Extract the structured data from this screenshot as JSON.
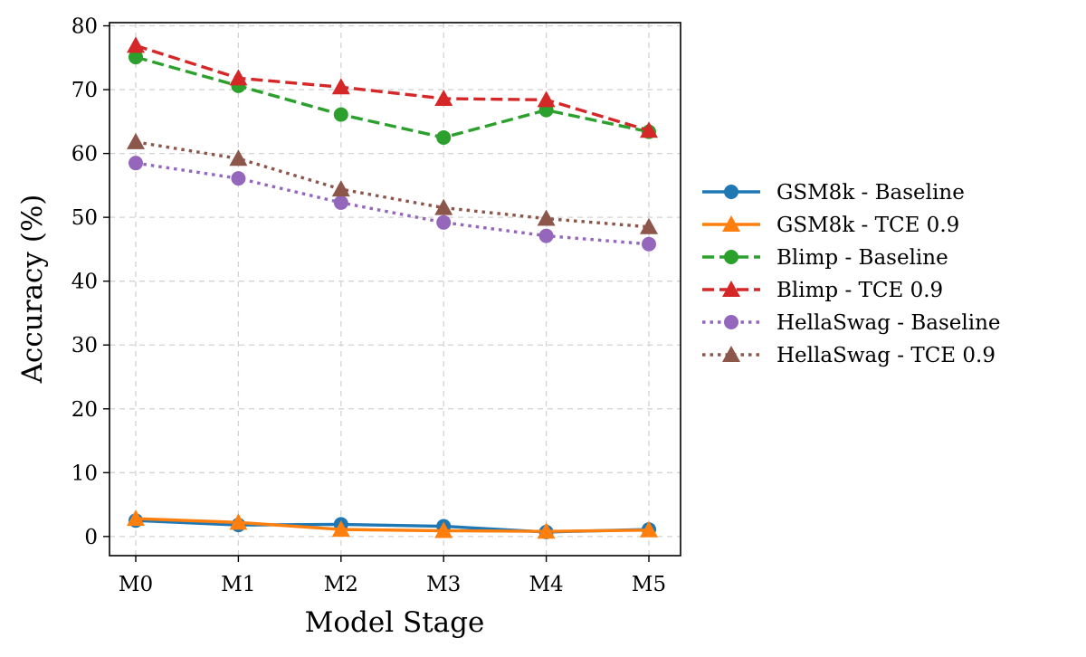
{
  "chart_data": {
    "type": "line",
    "title": "",
    "xlabel": "Model Stage",
    "ylabel": "Accuracy (%)",
    "categories": [
      "M0",
      "M1",
      "M2",
      "M3",
      "M4",
      "M5"
    ],
    "ylim": [
      -3,
      80.5
    ],
    "yticks": [
      0,
      10,
      20,
      30,
      40,
      50,
      60,
      70,
      80
    ],
    "grid": true,
    "legend_position": "outside-right",
    "series": [
      {
        "name": "GSM8k - Baseline",
        "color": "#1f77b4",
        "linestyle": "solid",
        "marker": "circle",
        "values": [
          2.5,
          1.8,
          1.9,
          1.6,
          0.7,
          1.1
        ]
      },
      {
        "name": "GSM8k - TCE 0.9",
        "color": "#ff7f0e",
        "linestyle": "solid",
        "marker": "triangle",
        "values": [
          2.8,
          2.2,
          1.1,
          0.9,
          0.8,
          1.0
        ]
      },
      {
        "name": "Blimp - Baseline",
        "color": "#2ca02c",
        "linestyle": "dashed",
        "marker": "circle",
        "values": [
          75.1,
          70.6,
          66.1,
          62.5,
          66.8,
          63.4
        ]
      },
      {
        "name": "Blimp - TCE 0.9",
        "color": "#d62728",
        "linestyle": "dashed",
        "marker": "triangle",
        "values": [
          76.9,
          71.8,
          70.4,
          68.6,
          68.4,
          63.6
        ]
      },
      {
        "name": "HellaSwag - Baseline",
        "color": "#9467bd",
        "linestyle": "dotted",
        "marker": "circle",
        "values": [
          58.5,
          56.1,
          52.3,
          49.2,
          47.1,
          45.8
        ]
      },
      {
        "name": "HellaSwag - TCE 0.9",
        "color": "#8c564b",
        "linestyle": "dotted",
        "marker": "triangle",
        "values": [
          61.8,
          59.2,
          54.4,
          51.5,
          49.8,
          48.5
        ]
      }
    ]
  }
}
